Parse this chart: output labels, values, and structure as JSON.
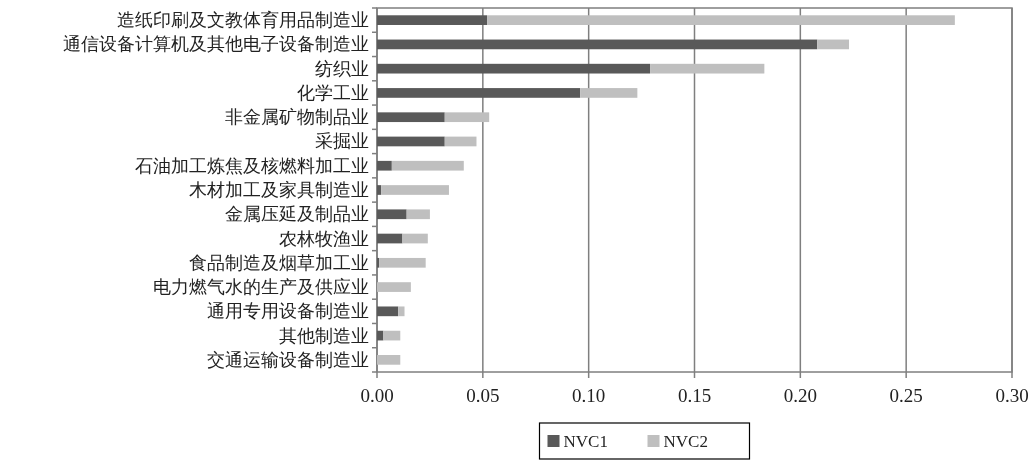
{
  "chart_data": {
    "type": "bar",
    "orientation": "horizontal",
    "stacked": true,
    "categories": [
      "造纸印刷及文教体育用品制造业",
      "通信设备计算机及其他电子设备制造业",
      "纺织业",
      "化学工业",
      "非金属矿物制品业",
      "采掘业",
      "石油加工炼焦及核燃料加工业",
      "木材加工及家具制造业",
      "金属压延及制品业",
      "农林牧渔业",
      "食品制造及烟草加工业",
      "电力燃气水的生产及供应业",
      "通用专用设备制造业",
      "其他制造业",
      "交通运输设备制造业"
    ],
    "series": [
      {
        "name": "NVC1",
        "color": "#595959",
        "values": [
          0.052,
          0.208,
          0.129,
          0.096,
          0.032,
          0.032,
          0.007,
          0.002,
          0.014,
          0.012,
          0.001,
          0,
          0.01,
          0.003,
          0
        ]
      },
      {
        "name": "NVC2",
        "color": "#bfbfbf",
        "values": [
          0.221,
          0.015,
          0.054,
          0.027,
          0.021,
          0.015,
          0.034,
          0.032,
          0.011,
          0.012,
          0.022,
          0.016,
          0.003,
          0.008,
          0.011
        ]
      }
    ],
    "xlim": [
      0,
      0.3
    ],
    "xticks": [
      {
        "value": 0,
        "label": "0.00"
      },
      {
        "value": 0.05,
        "label": "0.05"
      },
      {
        "value": 0.1,
        "label": "0.10"
      },
      {
        "value": 0.15,
        "label": "0.15"
      },
      {
        "value": 0.2,
        "label": "0.20"
      },
      {
        "value": 0.25,
        "label": "0.25"
      },
      {
        "value": 0.3,
        "label": "0.30"
      }
    ],
    "grid": "x",
    "legend": "bottom"
  }
}
